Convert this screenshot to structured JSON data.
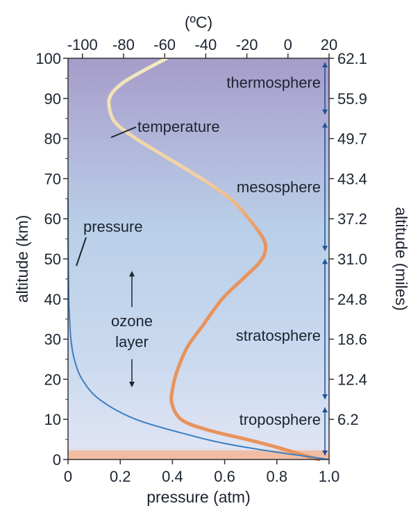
{
  "chart_data": {
    "type": "line",
    "top_axis": {
      "label": "(ºC)",
      "ticks": [
        -100,
        -80,
        -60,
        -40,
        -20,
        0,
        20
      ],
      "range": [
        -107,
        20
      ]
    },
    "bottom_axis": {
      "label": "pressure (atm)",
      "ticks": [
        "0",
        "0.2",
        "0.4",
        "0.6",
        "0.8",
        "1.0"
      ],
      "range": [
        0,
        1.0
      ]
    },
    "left_axis": {
      "label": "altitude (km)",
      "ticks": [
        0,
        10,
        20,
        30,
        40,
        50,
        60,
        70,
        80,
        90,
        100
      ],
      "range": [
        0,
        100
      ]
    },
    "right_axis": {
      "label": "altitude (miles)",
      "ticks": [
        "6.2",
        "12.4",
        "18.6",
        "24.8",
        "31.0",
        "37.2",
        "43.4",
        "49.7",
        "55.9",
        "62.1"
      ],
      "tick_km": [
        10,
        20,
        30,
        40,
        50,
        60,
        70,
        80,
        90,
        100
      ]
    },
    "series": [
      {
        "name": "temperature",
        "color": "#e8935c",
        "points": [
          [
            15,
            0
          ],
          [
            8,
            1
          ],
          [
            -5,
            3
          ],
          [
            -20,
            5
          ],
          [
            -40,
            7.5
          ],
          [
            -52,
            10
          ],
          [
            -56.5,
            14
          ],
          [
            -56,
            18
          ],
          [
            -54,
            22
          ],
          [
            -49,
            28
          ],
          [
            -42,
            33
          ],
          [
            -32,
            40
          ],
          [
            -22,
            45
          ],
          [
            -14,
            49
          ],
          [
            -11,
            52
          ],
          [
            -12,
            55
          ],
          [
            -19,
            60
          ],
          [
            -28,
            65
          ],
          [
            -42,
            70
          ],
          [
            -58,
            75
          ],
          [
            -74,
            80
          ],
          [
            -84,
            84
          ],
          [
            -87,
            88
          ],
          [
            -86,
            91
          ],
          [
            -80,
            94
          ],
          [
            -70,
            97
          ],
          [
            -59,
            100
          ]
        ]
      },
      {
        "name": "pressure",
        "color": "#3b7fc4",
        "points": [
          [
            1.0,
            0
          ],
          [
            0.89,
            1
          ],
          [
            0.78,
            2
          ],
          [
            0.6,
            4
          ],
          [
            0.47,
            6
          ],
          [
            0.26,
            10
          ],
          [
            0.12,
            15
          ],
          [
            0.054,
            20
          ],
          [
            0.024,
            25
          ],
          [
            0.011,
            30
          ],
          [
            0.006,
            35
          ],
          [
            0.003,
            40
          ],
          [
            0.001,
            50
          ],
          [
            0.0002,
            60
          ],
          [
            0,
            65
          ]
        ]
      }
    ],
    "annotations": {
      "temperature": "temperature",
      "pressure": "pressure",
      "ozone": [
        "ozone",
        "layer"
      ]
    },
    "layers": [
      {
        "name": "thermosphere",
        "km": 94
      },
      {
        "name": "mesosphere",
        "km": 68
      },
      {
        "name": "stratosphere",
        "km": 31
      },
      {
        "name": "troposphere",
        "km": 10
      }
    ],
    "boundaries_km": [
      0,
      14,
      51,
      85,
      100
    ],
    "ozone_range_km": [
      18,
      47
    ]
  }
}
